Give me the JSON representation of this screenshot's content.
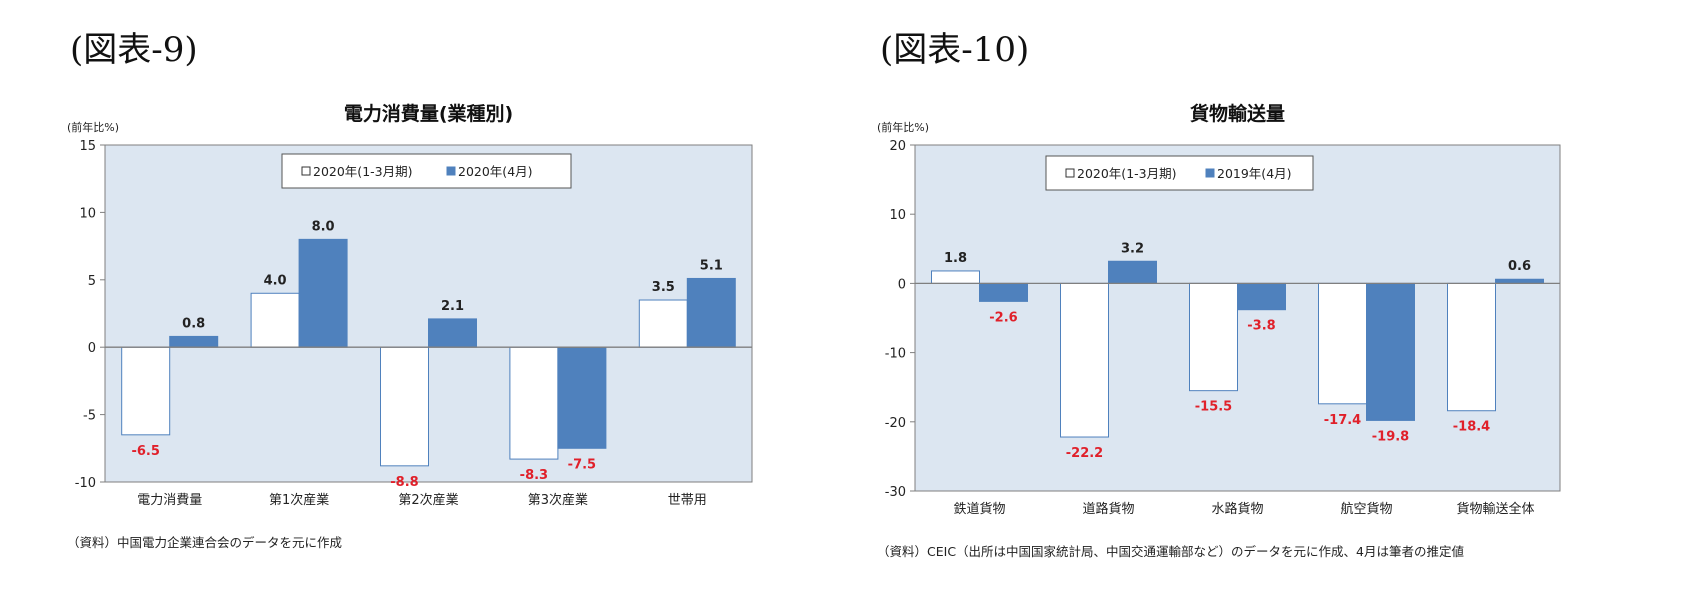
{
  "figures": [
    {
      "label": "(図表-9)",
      "source": "（資料）中国電力企業連合会のデータを元に作成",
      "chart_data": {
        "type": "bar",
        "title": "電力消費量(業種別)",
        "ylabel": "(前年比%)",
        "xlabel": "",
        "ylim": [
          -10,
          15
        ],
        "yticks": [
          -10,
          -5,
          0,
          5,
          10,
          15
        ],
        "categories": [
          "電力消費量",
          "第1次産業",
          "第2次産業",
          "第3次産業",
          "世帯用"
        ],
        "series": [
          {
            "name": "2020年(1-3月期)",
            "values": [
              -6.5,
              4.0,
              -8.8,
              -8.3,
              3.5
            ],
            "labels": [
              "-6.5",
              "4.0",
              "-8.8",
              "-8.3",
              "3.5"
            ]
          },
          {
            "name": "2020年(4月)",
            "values": [
              0.8,
              8.0,
              2.1,
              -7.5,
              5.1
            ],
            "labels": [
              "0.8",
              "8.0",
              "2.1",
              "-7.5",
              "5.1"
            ]
          }
        ],
        "grid": false,
        "legend_position": "top-center"
      }
    },
    {
      "label": "(図表-10)",
      "source": "（資料）CEIC（出所は中国国家統計局、中国交通運輸部など）のデータを元に作成、4月は筆者の推定値",
      "chart_data": {
        "type": "bar",
        "title": "貨物輸送量",
        "ylabel": "(前年比%)",
        "xlabel": "",
        "ylim": [
          -30,
          20
        ],
        "yticks": [
          -30,
          -20,
          -10,
          0,
          10,
          20
        ],
        "categories": [
          "鉄道貨物",
          "道路貨物",
          "水路貨物",
          "航空貨物",
          "貨物輸送全体"
        ],
        "series": [
          {
            "name": "2020年(1-3月期)",
            "values": [
              1.8,
              -22.2,
              -15.5,
              -17.4,
              -18.4
            ],
            "labels": [
              "1.8",
              "-22.2",
              "-15.5",
              "-17.4",
              "-18.4"
            ]
          },
          {
            "name": "2019年(4月)",
            "values": [
              -2.6,
              3.2,
              -3.8,
              -19.8,
              0.6
            ],
            "labels": [
              "-2.6",
              "3.2",
              "-3.8",
              "-19.8",
              "0.6"
            ]
          }
        ],
        "grid": false,
        "legend_position": "top-center"
      }
    }
  ],
  "colors": {
    "plot_bg": "#dce6f1",
    "series1_fill": "#ffffff",
    "series2_fill": "#4f81bd",
    "bar_stroke": "#4f81bd",
    "negative_label": "#e0202a",
    "positive_label": "#222222"
  }
}
